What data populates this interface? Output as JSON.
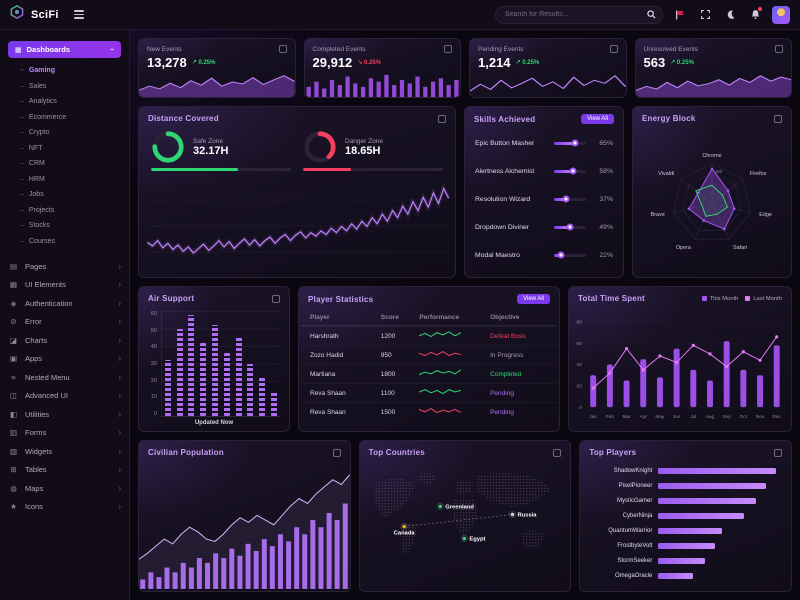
{
  "navbar": {
    "brand": "SciFi",
    "search_placeholder": "Search for Results..."
  },
  "sidebar": {
    "dashboards": "Dashboards",
    "submenu": [
      "Gaming",
      "Sales",
      "Analytics",
      "Ecommerce",
      "Crypto",
      "NFT",
      "CRM",
      "HRM",
      "Jobs",
      "Projects",
      "Stocks",
      "Courses"
    ],
    "active_submenu": "Gaming",
    "items": [
      "Pages",
      "UI Elements",
      "Authentication",
      "Error",
      "Charts",
      "Apps",
      "Nested Menu",
      "Advanced UI",
      "Utilities",
      "Forms",
      "Widgets",
      "Tables",
      "Maps",
      "Icons"
    ]
  },
  "stats": [
    {
      "title": "New Events",
      "value": "13,278",
      "change": "0.25%",
      "direction": "up"
    },
    {
      "title": "Completed Events",
      "value": "29,912",
      "change": "0.25%",
      "direction": "down"
    },
    {
      "title": "Pending Events",
      "value": "1,214",
      "change": "0.25%",
      "direction": "up"
    },
    {
      "title": "Unresolved Events",
      "value": "563",
      "change": "0.25%",
      "direction": "up"
    }
  ],
  "cards": {
    "distance": {
      "title": "Distance Covered"
    },
    "skills": {
      "title": "Skills Achieved",
      "view_all": "View All"
    },
    "energy": {
      "title": "Energy Block"
    },
    "air": {
      "title": "Air Support"
    },
    "players": {
      "title": "Player Statistics",
      "view_all": "View All",
      "columns": [
        "Player",
        "Score",
        "Performance",
        "Objective"
      ],
      "rows": [
        {
          "player": "Harshrath",
          "score": "1200",
          "objective": "Defeat Boss",
          "objective_color": "#f43f5e",
          "perf_color": "#2fd573",
          "perf": [
            4,
            7,
            3,
            8,
            5,
            9,
            4,
            8
          ]
        },
        {
          "player": "Zozo Hadid",
          "score": "950",
          "objective": "In Progress",
          "objective_color": "#a49cb0",
          "perf_color": "#f43f5e",
          "perf": [
            6,
            3,
            7,
            4,
            8,
            3,
            6,
            4
          ]
        },
        {
          "player": "Martiana",
          "score": "1800",
          "objective": "Completed",
          "objective_color": "#2fd573",
          "perf_color": "#2fd573",
          "perf": [
            3,
            6,
            4,
            8,
            5,
            7,
            4,
            9
          ]
        },
        {
          "player": "Reva Shaan",
          "score": "1100",
          "objective": "Pending",
          "objective_color": "#b06ef7",
          "perf_color": "#2fd573",
          "perf": [
            5,
            8,
            4,
            7,
            3,
            8,
            5,
            7
          ]
        },
        {
          "player": "Reva Shaan",
          "score": "1500",
          "objective": "Pending",
          "objective_color": "#b06ef7",
          "perf_color": "#f43f5e",
          "perf": [
            7,
            4,
            8,
            3,
            6,
            4,
            7,
            3
          ]
        }
      ]
    },
    "time": {
      "title": "Total Time Spent",
      "legend": [
        {
          "label": "This Month",
          "color": "#a855f7"
        },
        {
          "label": "Last Month",
          "color": "#e879f9"
        }
      ]
    },
    "population": {
      "title": "Civilian Population"
    },
    "countries": {
      "title": "Top Countries",
      "markers": [
        {
          "name": "Greenland",
          "color": "#2fd573",
          "x": 80,
          "y": 40,
          "label_side": "right"
        },
        {
          "name": "Russia",
          "color": "#cfc8da",
          "x": 152,
          "y": 48,
          "label_side": "right"
        },
        {
          "name": "Canada",
          "color": "#eab308",
          "x": 44,
          "y": 60,
          "label_side": "below"
        },
        {
          "name": "Egypt",
          "color": "#2fd573",
          "x": 104,
          "y": 72,
          "label_side": "right"
        }
      ]
    },
    "top_players": {
      "title": "Top Players"
    }
  },
  "chart_data": {
    "sparklines": [
      {
        "type": "area",
        "values": [
          22,
          35,
          26,
          44,
          30,
          52,
          38,
          60,
          35,
          48,
          42,
          62,
          40,
          55,
          68,
          50
        ]
      },
      {
        "type": "bar",
        "values": [
          30,
          45,
          25,
          50,
          35,
          60,
          40,
          30,
          55,
          45,
          65,
          35,
          50,
          40,
          60,
          30,
          45,
          55,
          35,
          50
        ]
      },
      {
        "type": "line",
        "values": [
          20,
          42,
          25,
          55,
          30,
          45,
          62,
          35,
          50,
          28,
          65,
          38,
          55,
          45,
          70,
          34
        ]
      },
      {
        "type": "area",
        "values": [
          25,
          40,
          30,
          55,
          35,
          60,
          42,
          50,
          65,
          45,
          70,
          55,
          80,
          60,
          75,
          65
        ]
      }
    ],
    "distance_line": {
      "type": "line",
      "ymax": 100,
      "values": [
        34,
        30,
        36,
        28,
        33,
        26,
        31,
        24,
        29,
        22,
        27,
        32,
        25,
        30,
        36,
        29,
        35,
        27,
        33,
        38,
        31,
        37,
        30,
        36,
        40,
        33,
        39,
        43,
        36,
        42,
        46,
        39,
        45,
        41,
        47,
        43,
        50,
        45,
        52,
        47,
        55,
        49,
        58,
        52,
        62,
        55,
        66,
        58,
        70,
        62,
        75,
        66,
        80,
        70,
        85,
        74,
        90,
        78,
        95,
        84
      ]
    },
    "gauges": [
      {
        "label": "Safe Zone",
        "value": "32.17H",
        "percent": 75,
        "bar_percent": 62,
        "color": "#2fd573"
      },
      {
        "label": "Danger Zone",
        "value": "18.65H",
        "percent": 38,
        "bar_percent": 34,
        "color": "#f43f5e"
      }
    ],
    "skills": {
      "type": "progress",
      "items": [
        {
          "name": "Epic Button Masher",
          "percent": 65
        },
        {
          "name": "Alertness Alchemist",
          "percent": 58
        },
        {
          "name": "Resolution Wizard",
          "percent": 37
        },
        {
          "name": "Dropdown Diviner",
          "percent": 49
        },
        {
          "name": "Modal Maestro",
          "percent": 22
        }
      ]
    },
    "radar": {
      "type": "radar",
      "max": 100,
      "axes": [
        "Chrome",
        "Firefox",
        "Edge",
        "Safari",
        "Opera",
        "Brave",
        "Vivaldi"
      ],
      "series": [
        {
          "name": "primary",
          "color": "#a855f7",
          "values": [
            88,
            52,
            58,
            72,
            48,
            60,
            44
          ]
        },
        {
          "name": "secondary",
          "color": "#2fd573",
          "values": [
            46,
            34,
            40,
            30,
            36,
            26,
            52
          ]
        }
      ]
    },
    "air_support": {
      "type": "bar",
      "ymax": 60,
      "yticks": [
        0,
        10,
        20,
        30,
        40,
        50,
        60
      ],
      "xlabel": "Updated Now",
      "values": [
        32,
        50,
        58,
        42,
        52,
        36,
        46,
        30,
        22,
        14
      ]
    },
    "time_spent": {
      "type": "bar+line",
      "ymax": 80,
      "yticks": [
        0,
        20,
        40,
        60,
        80
      ],
      "months": [
        "Jan",
        "Feb",
        "Mar",
        "Apr",
        "May",
        "Jun",
        "Jul",
        "Aug",
        "Sep",
        "Oct",
        "Nov",
        "Dec"
      ],
      "bars": [
        30,
        40,
        25,
        45,
        28,
        55,
        35,
        25,
        62,
        35,
        30,
        58
      ],
      "line": [
        18,
        32,
        55,
        35,
        48,
        42,
        58,
        50,
        38,
        52,
        44,
        66
      ],
      "bar_color": "#a855f7",
      "line_color": "#e879f9"
    },
    "population": {
      "type": "bar+area",
      "ymax": 100,
      "bars": [
        8,
        14,
        10,
        18,
        14,
        22,
        18,
        26,
        22,
        30,
        26,
        34,
        28,
        38,
        32,
        42,
        36,
        46,
        40,
        52,
        46,
        58,
        52,
        64,
        58,
        72
      ],
      "area": [
        25,
        30,
        36,
        42,
        38,
        46,
        52,
        48,
        42,
        40,
        46,
        54,
        60,
        56,
        62,
        58,
        54,
        62,
        70,
        76,
        72,
        80,
        86,
        92,
        88,
        96
      ]
    },
    "top_players": {
      "type": "hbar",
      "max": 100,
      "rows": [
        {
          "name": "ShadowKnight",
          "value": 96
        },
        {
          "name": "PixelPioneer",
          "value": 88
        },
        {
          "name": "MysticGamer",
          "value": 80
        },
        {
          "name": "CyberNinja",
          "value": 70
        },
        {
          "name": "QuantumWarrior",
          "value": 52
        },
        {
          "name": "FrostbyteVolt",
          "value": 46
        },
        {
          "name": "StormSeeker",
          "value": 38
        },
        {
          "name": "OmegaOracle",
          "value": 28
        }
      ]
    }
  },
  "colors": {
    "accent": "#a855f7",
    "accent_bright": "#c084fc",
    "green": "#2fd573",
    "red": "#f43f5e"
  }
}
